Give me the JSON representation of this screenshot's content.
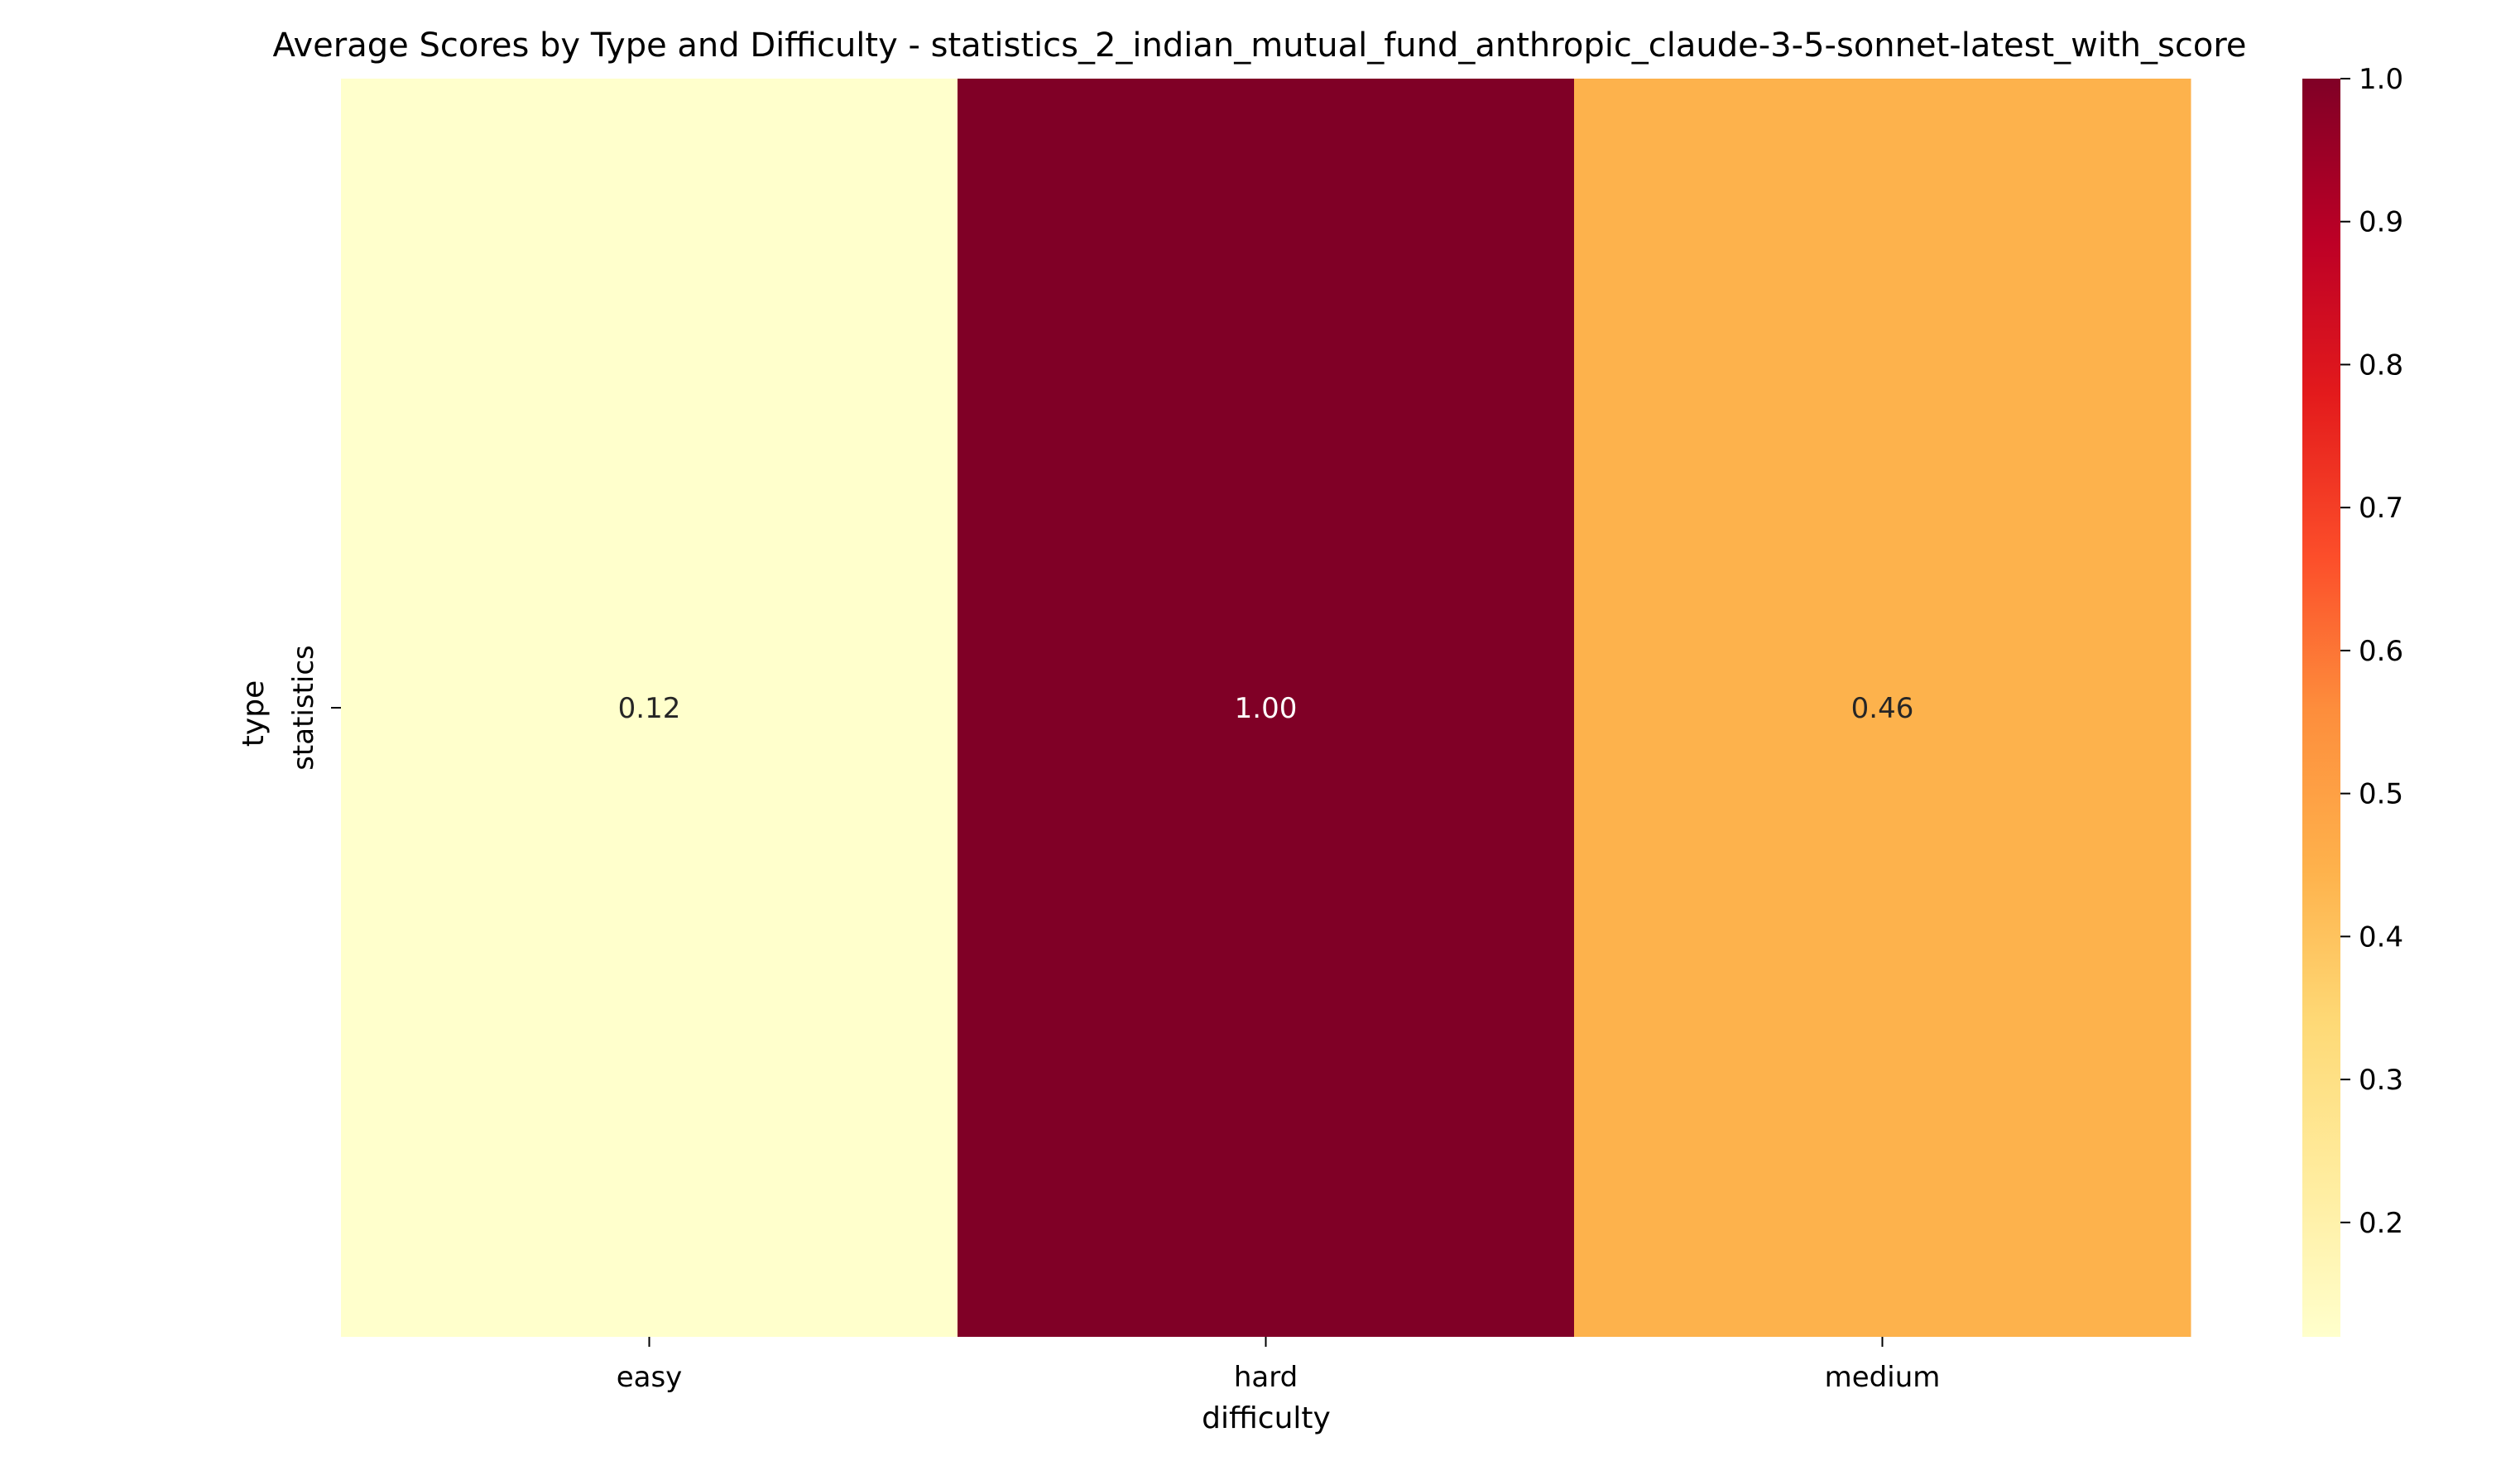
{
  "chart_data": {
    "type": "heatmap",
    "title": "Average Scores by Type and Difficulty - statistics_2_indian_mutual_fund_anthropic_claude-3-5-sonnet-latest_with_score",
    "xlabel": "difficulty",
    "ylabel": "type",
    "x_categories": [
      "easy",
      "hard",
      "medium"
    ],
    "y_categories": [
      "statistics"
    ],
    "values": [
      [
        0.12,
        1.0,
        0.46
      ]
    ],
    "cell_labels": [
      [
        "0.12",
        "1.00",
        "0.46"
      ]
    ],
    "colormap": "YlOrRd",
    "colorbar": {
      "min": 0.12,
      "max": 1.0,
      "ticks": [
        0.2,
        0.3,
        0.4,
        0.5,
        0.6,
        0.7,
        0.8,
        0.9,
        1.0
      ],
      "tick_labels": [
        "0.2",
        "0.3",
        "0.4",
        "0.5",
        "0.6",
        "0.7",
        "0.8",
        "0.9",
        "1.0"
      ]
    },
    "colors": {
      "easy": "#ffffcc",
      "hard": "#800026",
      "medium": "#fdb24c"
    }
  }
}
